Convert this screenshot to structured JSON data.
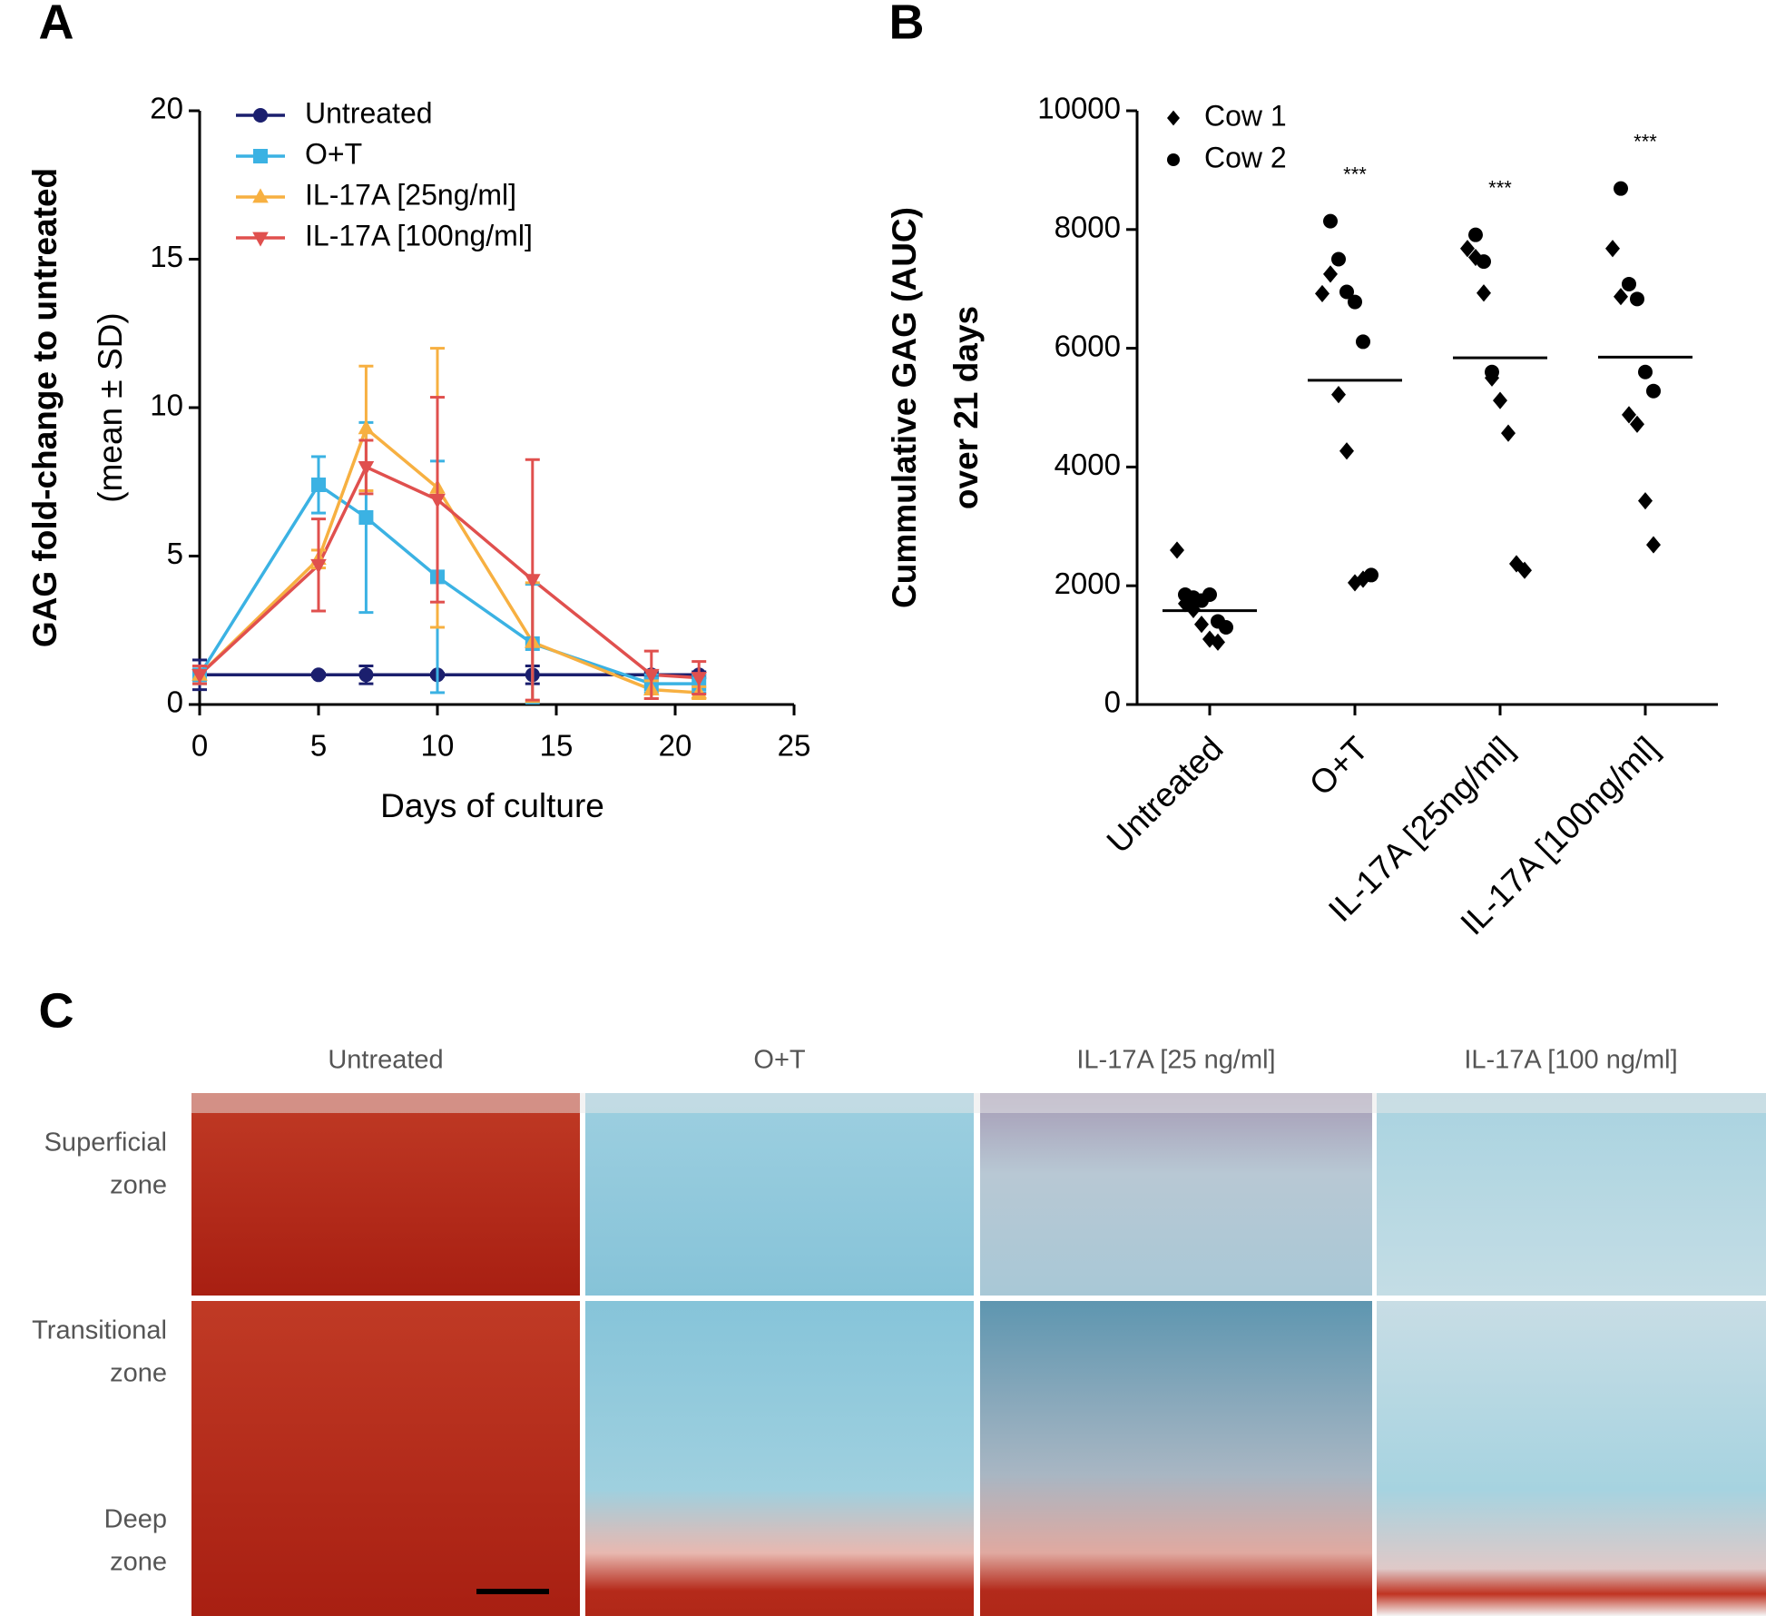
{
  "chart_data": [
    {
      "type": "line",
      "panel": "A",
      "xlabel": "Days of culture",
      "ylabel": [
        "GAG fold-change to untreated",
        "(mean ± SD)"
      ],
      "x": [
        0,
        5,
        7,
        10,
        14,
        19,
        21
      ],
      "xlim": [
        0,
        25
      ],
      "xticks": [
        0,
        5,
        10,
        15,
        20,
        25
      ],
      "ylim": [
        0,
        20
      ],
      "yticks": [
        0,
        5,
        10,
        15,
        20
      ],
      "legend": "upper left",
      "series": [
        {
          "name": "Untreated",
          "color": "#1b1f6e",
          "marker": "circle",
          "values": [
            1,
            1,
            1,
            1,
            1,
            1,
            1
          ],
          "errors": [
            0.5,
            0.05,
            0.3,
            0.05,
            0.3,
            0.1,
            0.1
          ]
        },
        {
          "name": "O+T",
          "color": "#3bb2e3",
          "marker": "square",
          "values": [
            1,
            7.4,
            6.3,
            4.3,
            2.05,
            0.7,
            0.7
          ],
          "errors": [
            0.3,
            0.95,
            3.2,
            3.9,
            2.0,
            0.3,
            0.3
          ]
        },
        {
          "name": "IL-17A [25ng/ml]",
          "color": "#f7b041",
          "marker": "triangle-up",
          "values": [
            1,
            4.9,
            9.3,
            7.3,
            2.1,
            0.5,
            0.4
          ],
          "errors": [
            0.3,
            0.3,
            2.1,
            4.7,
            2.0,
            0.3,
            0.2
          ]
        },
        {
          "name": "IL-17A [100ng/ml]",
          "color": "#e0504e",
          "marker": "triangle-down",
          "values": [
            1,
            4.7,
            8.0,
            6.9,
            4.2,
            1.0,
            0.9
          ],
          "errors": [
            0.3,
            1.55,
            0.9,
            3.45,
            4.05,
            0.8,
            0.55
          ]
        }
      ]
    },
    {
      "type": "strip",
      "panel": "B",
      "ylabel": [
        "Cummulative GAG (AUC)",
        "over 21 days"
      ],
      "categories": [
        "Untreated",
        "O+T",
        "IL-17A [25ng/ml]",
        "IL-17A [100ng/ml]"
      ],
      "ylim": [
        0,
        10000
      ],
      "yticks": [
        0,
        2000,
        4000,
        6000,
        8000,
        10000
      ],
      "legend": "upper left",
      "series": [
        {
          "name": "Cow 1",
          "color": "#000000",
          "marker": "diamond",
          "values": [
            [
              2600,
              1700,
              1600,
              1350,
              1100,
              1050
            ],
            [
              6920,
              7250,
              5220,
              4270,
              2050,
              2110
            ],
            [
              7680,
              7530,
              6930,
              5500,
              5120,
              4570,
              2370,
              2260
            ],
            [
              7680,
              6870,
              4880,
              4720,
              3430,
              2690
            ]
          ]
        },
        {
          "name": "Cow 2",
          "color": "#000000",
          "marker": "circle",
          "values": [
            [
              1850,
              1800,
              1750,
              1850,
              1400,
              1300
            ],
            [
              8140,
              7500,
              6950,
              6780,
              6110,
              2180
            ],
            [
              7910,
              7460,
              5600
            ],
            [
              8690,
              7080,
              6830,
              5600,
              5280
            ]
          ]
        }
      ],
      "means": [
        1580,
        5460,
        5840,
        5850
      ],
      "significance": [
        null,
        "***",
        "***",
        "***"
      ]
    }
  ],
  "histology": {
    "panel": "C",
    "columns": [
      "Untreated",
      "O+T",
      "IL-17A [25 ng/ml]",
      "IL-17A [100 ng/ml]"
    ],
    "zones": [
      [
        "Superficial",
        "zone"
      ],
      [
        "Transitional",
        "zone"
      ],
      [
        "Deep",
        "zone"
      ]
    ]
  }
}
